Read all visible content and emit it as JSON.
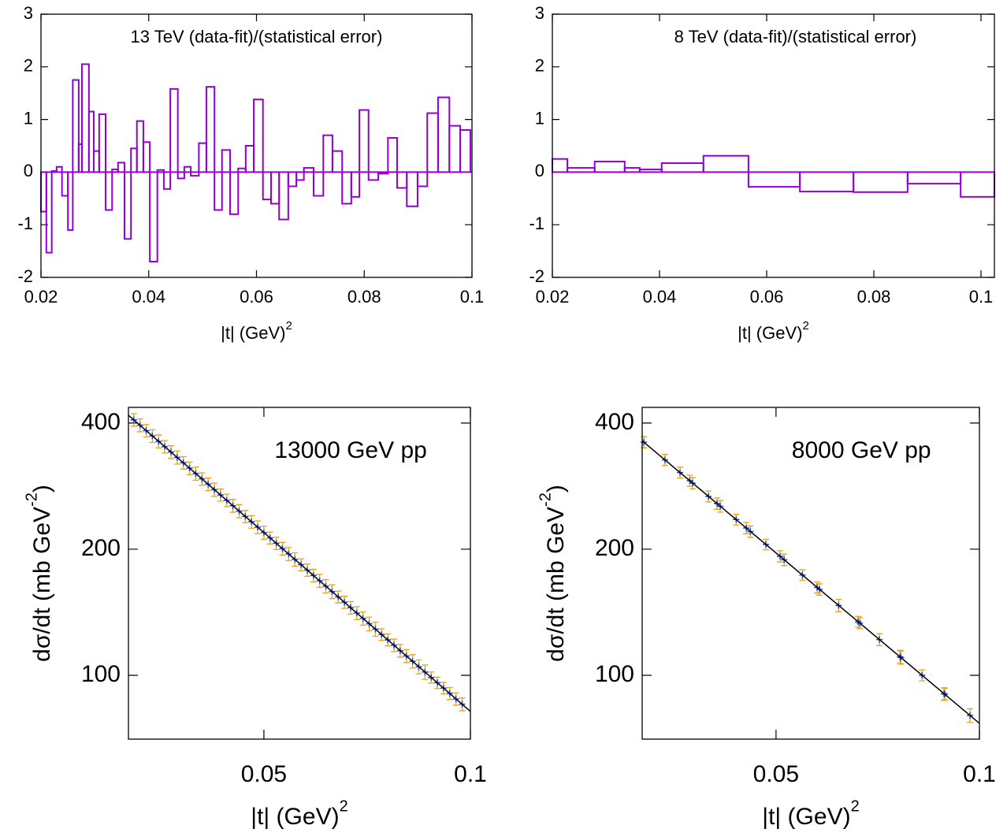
{
  "chart_data": [
    {
      "type": "histogram",
      "title": "13 TeV  (data-fit)/(statistical error)",
      "xlabel": "|t| (GeV)",
      "xlabel_sup": "2",
      "bins": [
        0.02,
        0.021,
        0.022,
        0.0229,
        0.0239,
        0.025,
        0.0259,
        0.027,
        0.0276,
        0.0289,
        0.0298,
        0.0308,
        0.032,
        0.0332,
        0.0343,
        0.0355,
        0.0367,
        0.0378,
        0.039,
        0.0402,
        0.0416,
        0.0428,
        0.044,
        0.0454,
        0.0466,
        0.0478,
        0.0493,
        0.0507,
        0.0522,
        0.0536,
        0.0551,
        0.0566,
        0.058,
        0.0595,
        0.0612,
        0.0627,
        0.0642,
        0.0659,
        0.0674,
        0.0688,
        0.0706,
        0.0724,
        0.0741,
        0.0759,
        0.0776,
        0.0791,
        0.0808,
        0.0826,
        0.0844,
        0.0861,
        0.0879,
        0.0899,
        0.0917,
        0.0937,
        0.0958,
        0.0978,
        0.0997
      ],
      "values": [
        -0.75,
        -1.53,
        0.02,
        0.1,
        -0.45,
        -1.1,
        1.75,
        0.53,
        2.05,
        1.15,
        0.4,
        1.1,
        -0.72,
        0.05,
        0.18,
        -1.27,
        0.45,
        0.97,
        0.57,
        -1.7,
        0.04,
        -0.32,
        1.58,
        -0.12,
        0.1,
        -0.07,
        0.55,
        1.62,
        -0.72,
        0.42,
        -0.8,
        0.07,
        0.5,
        1.38,
        -0.52,
        -0.6,
        -0.9,
        -0.27,
        -0.15,
        0.08,
        -0.45,
        0.7,
        0.4,
        -0.6,
        -0.47,
        1.18,
        -0.15,
        -0.03,
        0.65,
        -0.3,
        -0.65,
        -0.27,
        1.12,
        1.42,
        0.88,
        0.8
      ],
      "color": "#9400d3",
      "xlim": [
        0.02,
        0.1
      ],
      "xticks": [
        0.02,
        0.04,
        0.06,
        0.08,
        0.1
      ],
      "ylim": [
        -2,
        3
      ],
      "yticks": [
        -2,
        -1,
        0,
        1,
        2,
        3
      ]
    },
    {
      "type": "histogram",
      "title": "8 TeV  (data-fit)/(statistical error)",
      "xlabel": "|t| (GeV)",
      "xlabel_sup": "2",
      "bins": [
        0.02,
        0.0228,
        0.0279,
        0.0335,
        0.0363,
        0.0404,
        0.0482,
        0.0566,
        0.0662,
        0.0762,
        0.0863,
        0.0962,
        0.1025
      ],
      "values": [
        0.25,
        0.08,
        0.2,
        0.08,
        0.05,
        0.17,
        0.31,
        -0.28,
        -0.37,
        -0.38,
        -0.22,
        -0.47
      ],
      "color": "#9400d3",
      "xlim": [
        0.02,
        0.1025
      ],
      "xticks": [
        0.02,
        0.04,
        0.06,
        0.08,
        0.1
      ],
      "ylim": [
        -2,
        3
      ],
      "yticks": [
        -2,
        -1,
        0,
        1,
        2,
        3
      ]
    },
    {
      "type": "scatter",
      "annotation": "13000 GeV pp",
      "xlabel": "|t| (GeV)",
      "xlabel_sup": "2",
      "ylabel": "dσ/dt (mb GeV",
      "ylabel_sup": "-2",
      "ylabel_end": ")",
      "ylog": true,
      "xlim": [
        0.0172,
        0.1
      ],
      "xticks": [
        0.05,
        0.1
      ],
      "ylim": [
        70.4,
        436
      ],
      "yticks": [
        100,
        200,
        400
      ],
      "series": [
        {
          "color": "#1f3fbf",
          "error_color": "#e8a317",
          "x": [
            0.0185,
            0.02,
            0.0215,
            0.023,
            0.0245,
            0.026,
            0.0275,
            0.029,
            0.0305,
            0.032,
            0.0335,
            0.035,
            0.0365,
            0.038,
            0.0395,
            0.041,
            0.0425,
            0.044,
            0.0455,
            0.047,
            0.0485,
            0.05,
            0.0515,
            0.053,
            0.0545,
            0.056,
            0.0575,
            0.059,
            0.0605,
            0.062,
            0.0635,
            0.065,
            0.0665,
            0.068,
            0.0695,
            0.071,
            0.0725,
            0.074,
            0.0755,
            0.077,
            0.0785,
            0.08,
            0.0815,
            0.083,
            0.0845,
            0.086,
            0.0875,
            0.089,
            0.0905,
            0.092,
            0.0935,
            0.095,
            0.0965,
            0.098
          ],
          "values": [
            407.1,
            395.3,
            383.8,
            372.6,
            361.8,
            351.3,
            341.1,
            331.2,
            321.6,
            312.2,
            303.1,
            294.3,
            285.8,
            277.5,
            269.4,
            261.6,
            254.0,
            246.6,
            239.4,
            232.5,
            225.7,
            219.1,
            212.8,
            206.6,
            200.6,
            194.8,
            189.1,
            183.6,
            178.3,
            173.1,
            168.1,
            163.2,
            158.4,
            153.8,
            149.4,
            145.0,
            140.8,
            136.7,
            132.7,
            128.9,
            125.1,
            121.5,
            118.0,
            114.5,
            111.2,
            108.0,
            104.8,
            101.8,
            98.8,
            96.0,
            93.2,
            90.5,
            87.8,
            85.3
          ],
          "errors": [
            14,
            14,
            13,
            13,
            13,
            12,
            12,
            12,
            11,
            11,
            11,
            10,
            10,
            10,
            9,
            9,
            9,
            9,
            8,
            8,
            8,
            8,
            7,
            7,
            7,
            7,
            7,
            6,
            6,
            6,
            6,
            6,
            6,
            5,
            5,
            5,
            5,
            5,
            5,
            5,
            4,
            4,
            4,
            4,
            4,
            4,
            4,
            4,
            3,
            3,
            3,
            3,
            3,
            3
          ]
        },
        {
          "type": "line",
          "color": "#000000",
          "x": [
            0.0172,
            0.1
          ],
          "values": [
            417.6,
            82.0
          ]
        }
      ]
    },
    {
      "type": "scatter",
      "annotation": "8000 GeV pp",
      "xlabel": "|t| (GeV)",
      "xlabel_sup": "2",
      "ylabel": "dσ/dt (mb GeV",
      "ylabel_sup": "-2",
      "ylabel_end": ")",
      "ylog": true,
      "xlim": [
        0.0171,
        0.1
      ],
      "xticks": [
        0.05,
        0.1
      ],
      "ylim": [
        70.4,
        436
      ],
      "yticks": [
        100,
        200,
        400
      ],
      "series": [
        {
          "color": "#1f3fbf",
          "error_color": "#e8a317",
          "x": [
            0.0175,
            0.0227,
            0.0264,
            0.0288,
            0.0295,
            0.0334,
            0.0355,
            0.0363,
            0.0402,
            0.0427,
            0.0437,
            0.0475,
            0.051,
            0.052,
            0.0565,
            0.0601,
            0.0607,
            0.0654,
            0.0702,
            0.0706,
            0.0754,
            0.0805,
            0.0807,
            0.0859,
            0.0913,
            0.0915,
            0.0977
          ],
          "values": [
            360.1,
            326.7,
            304.8,
            291.4,
            287.6,
            267.3,
            257.0,
            253.2,
            235.4,
            224.6,
            220.4,
            205.3,
            192.3,
            188.7,
            173.5,
            162.1,
            160.3,
            146.8,
            134.2,
            133.2,
            121.7,
            110.7,
            110.3,
            100.0,
            90.4,
            90.1,
            80.2
          ],
          "errors": [
            11,
            10,
            9,
            9,
            9,
            8,
            8,
            8,
            7,
            7,
            7,
            6,
            6,
            6,
            5,
            5,
            5,
            5,
            4,
            4,
            4,
            4,
            4,
            3,
            3,
            3,
            3
          ]
        },
        {
          "type": "line",
          "color": "#000000",
          "x": [
            0.0171,
            0.1
          ],
          "values": [
            362.8,
            76.8
          ]
        }
      ]
    }
  ]
}
